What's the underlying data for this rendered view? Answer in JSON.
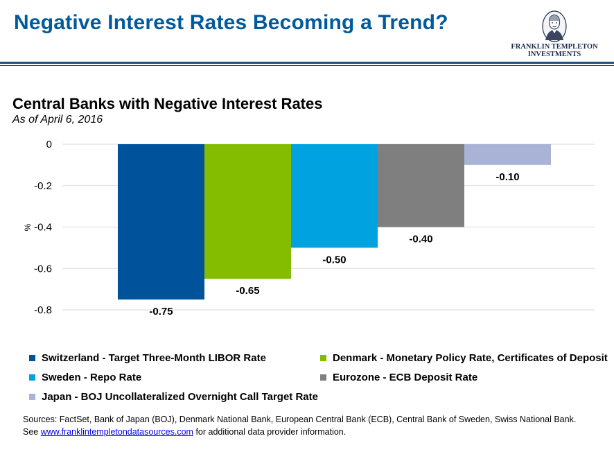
{
  "header": {
    "title": "Negative Interest Rates Becoming a Trend?",
    "logo_line1": "FRANKLIN TEMPLETON",
    "logo_line2": "INVESTMENTS",
    "accent_color": "#005a9c",
    "rule_color": "#1f4e79"
  },
  "chart_data": {
    "type": "bar",
    "title": "Central Banks with Negative Interest Rates",
    "subtitle": "As of April 6, 2016",
    "xlabel": "",
    "ylabel": "%",
    "ylim": [
      -0.8,
      0
    ],
    "yticks": [
      0,
      -0.2,
      -0.4,
      -0.6,
      -0.8
    ],
    "ytick_labels": [
      "0",
      "-0.2",
      "-0.4",
      "-0.6",
      "-0.8"
    ],
    "grid": true,
    "legend_position": "bottom",
    "series": [
      {
        "name": "Switzerland - Target Three-Month LIBOR Rate",
        "value": -0.75,
        "label": "-0.75",
        "color": "#00539b"
      },
      {
        "name": "Denmark - Monetary Policy Rate, Certificates of Deposit",
        "value": -0.65,
        "label": "-0.65",
        "color": "#84bd00"
      },
      {
        "name": "Sweden - Repo Rate",
        "value": -0.5,
        "label": "-0.50",
        "color": "#00a3e0"
      },
      {
        "name": "Eurozone - ECB Deposit Rate",
        "value": -0.4,
        "label": "-0.40",
        "color": "#7f7f7f"
      },
      {
        "name": "Japan - BOJ Uncollateralized Overnight Call Target Rate",
        "value": -0.1,
        "label": "-0.10",
        "color": "#a9b3d6"
      }
    ]
  },
  "sources": {
    "line1": "Sources: FactSet, Bank of Japan (BOJ), Denmark National Bank,  European Central Bank (ECB), Central Bank of Sweden, Swiss National Bank.",
    "line2_prefix": "See ",
    "link_text": "www.franklintempletondatasources.com",
    "line2_suffix": " for additional data provider information."
  }
}
